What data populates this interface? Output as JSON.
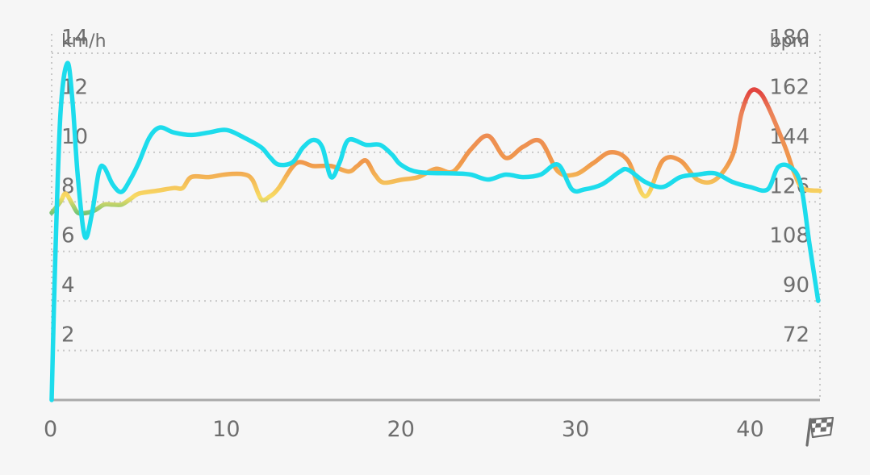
{
  "chart_data": {
    "type": "line",
    "left_axis": {
      "label": "km/h",
      "ticks": [
        2,
        4,
        6,
        8,
        10,
        12,
        14
      ],
      "ylim": [
        0,
        14
      ]
    },
    "right_axis": {
      "label": "bpm",
      "ticks": [
        72,
        90,
        108,
        126,
        144,
        162,
        180
      ],
      "ylim": [
        54,
        180
      ]
    },
    "x_axis": {
      "ticks": [
        0,
        10,
        20,
        30,
        40
      ],
      "xlim": [
        0,
        44
      ],
      "end_icon": "checkered-flag-icon"
    },
    "grid": true,
    "colors": {
      "speed": "#1ddcec",
      "hr_scale": [
        "#4cc07a",
        "#f8db63",
        "#f0994c",
        "#eb8258",
        "#e2453f"
      ],
      "grid": "#c8c8c8",
      "axis": "#a9a9a9",
      "text": "#6e6e6e"
    },
    "series": [
      {
        "axis": "left",
        "points": [
          [
            0,
            0
          ],
          [
            0.2,
            5.5
          ],
          [
            0.5,
            11.5
          ],
          [
            0.9,
            13.6
          ],
          [
            1.2,
            12.0
          ],
          [
            1.5,
            9.0
          ],
          [
            1.9,
            6.6
          ],
          [
            2.3,
            7.5
          ],
          [
            2.7,
            9.2
          ],
          [
            3.0,
            9.4
          ],
          [
            3.5,
            8.7
          ],
          [
            4.0,
            8.4
          ],
          [
            4.5,
            8.9
          ],
          [
            5.0,
            9.6
          ],
          [
            5.6,
            10.6
          ],
          [
            6.2,
            11.0
          ],
          [
            7.0,
            10.8
          ],
          [
            8.0,
            10.7
          ],
          [
            9.0,
            10.8
          ],
          [
            10.0,
            10.9
          ],
          [
            11.0,
            10.6
          ],
          [
            12.0,
            10.2
          ],
          [
            12.5,
            9.8
          ],
          [
            13.0,
            9.5
          ],
          [
            13.8,
            9.6
          ],
          [
            14.4,
            10.2
          ],
          [
            15.0,
            10.5
          ],
          [
            15.5,
            10.2
          ],
          [
            16.0,
            9.0
          ],
          [
            16.5,
            9.6
          ],
          [
            17.0,
            10.5
          ],
          [
            18.0,
            10.3
          ],
          [
            18.8,
            10.3
          ],
          [
            19.5,
            9.9
          ],
          [
            20.0,
            9.5
          ],
          [
            21.0,
            9.2
          ],
          [
            23.0,
            9.15
          ],
          [
            24.0,
            9.1
          ],
          [
            25.0,
            8.9
          ],
          [
            26.0,
            9.1
          ],
          [
            27.0,
            9.0
          ],
          [
            28.0,
            9.1
          ],
          [
            29.0,
            9.5
          ],
          [
            29.8,
            8.5
          ],
          [
            30.5,
            8.5
          ],
          [
            31.5,
            8.7
          ],
          [
            32.5,
            9.2
          ],
          [
            33.0,
            9.3
          ],
          [
            34.0,
            8.8
          ],
          [
            35.0,
            8.6
          ],
          [
            36.0,
            9.0
          ],
          [
            37.0,
            9.1
          ],
          [
            38.0,
            9.15
          ],
          [
            39.0,
            8.8
          ],
          [
            40.0,
            8.6
          ],
          [
            41.0,
            8.5
          ],
          [
            41.6,
            9.4
          ],
          [
            42.3,
            9.4
          ],
          [
            42.9,
            8.7
          ],
          [
            43.4,
            6.3
          ],
          [
            43.9,
            4.0
          ]
        ]
      },
      {
        "axis": "right",
        "points": [
          [
            0,
            122
          ],
          [
            0.5,
            126
          ],
          [
            0.8,
            129
          ],
          [
            1.2,
            125
          ],
          [
            1.5,
            122
          ],
          [
            2.0,
            122
          ],
          [
            2.5,
            123
          ],
          [
            3.0,
            125
          ],
          [
            3.5,
            125
          ],
          [
            4.0,
            125
          ],
          [
            4.5,
            127
          ],
          [
            5.0,
            129
          ],
          [
            6.0,
            130
          ],
          [
            7.0,
            131
          ],
          [
            7.5,
            131
          ],
          [
            8.0,
            135
          ],
          [
            9.0,
            135
          ],
          [
            10.0,
            136
          ],
          [
            11.0,
            136
          ],
          [
            11.5,
            134
          ],
          [
            12.0,
            127
          ],
          [
            12.5,
            128
          ],
          [
            13.0,
            131
          ],
          [
            14.0,
            140
          ],
          [
            15.0,
            139
          ],
          [
            16.0,
            139
          ],
          [
            17.0,
            137
          ],
          [
            17.5,
            139
          ],
          [
            18.0,
            141
          ],
          [
            18.5,
            136
          ],
          [
            19.0,
            133
          ],
          [
            20.0,
            134
          ],
          [
            21.0,
            135
          ],
          [
            22.0,
            138
          ],
          [
            23.0,
            137
          ],
          [
            24.0,
            145
          ],
          [
            25.0,
            150
          ],
          [
            26.0,
            142
          ],
          [
            27.0,
            146
          ],
          [
            28.0,
            148
          ],
          [
            29.0,
            137
          ],
          [
            30.0,
            136
          ],
          [
            31.0,
            140
          ],
          [
            32.0,
            144
          ],
          [
            33.0,
            141
          ],
          [
            34.0,
            128
          ],
          [
            35.0,
            141
          ],
          [
            36.0,
            141
          ],
          [
            37.0,
            134
          ],
          [
            38.0,
            134
          ],
          [
            39.0,
            143
          ],
          [
            39.5,
            158
          ],
          [
            40.0,
            166
          ],
          [
            40.5,
            166
          ],
          [
            41.0,
            161
          ],
          [
            42.0,
            146
          ],
          [
            42.5,
            137
          ],
          [
            43.0,
            131
          ],
          [
            44.0,
            130
          ]
        ]
      }
    ]
  }
}
